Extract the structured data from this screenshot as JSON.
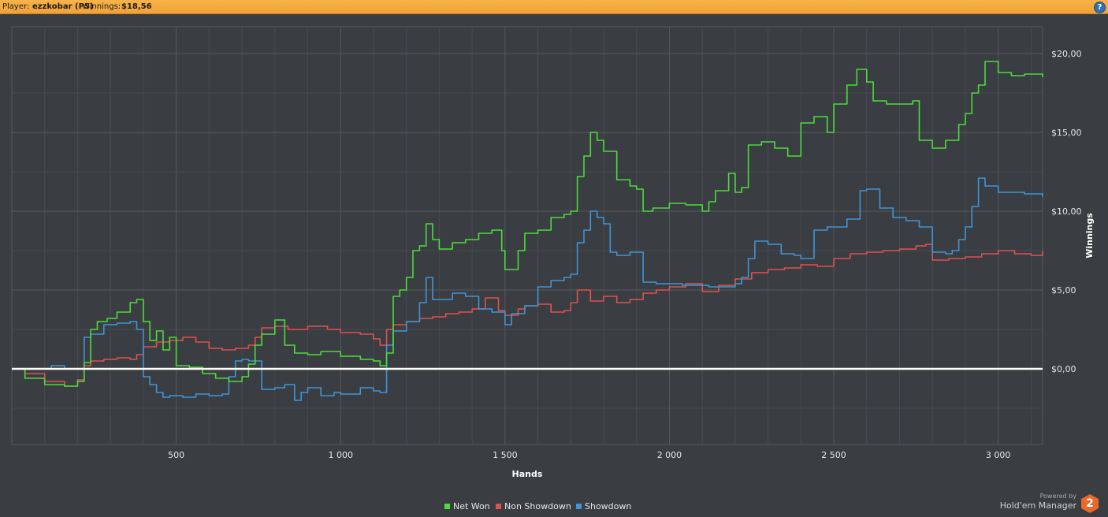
{
  "header": {
    "player_label": "Player:",
    "player_name": "ezzkobar (PS)",
    "winnings_label": "Winnings:",
    "winnings_value": "$18,56",
    "help_label": "?"
  },
  "brand": {
    "powered": "Powered by",
    "name": "Hold'em Manager",
    "logo": "2"
  },
  "colors": {
    "net_won": "#4cdc3c",
    "non_showdown": "#e0524f",
    "showdown": "#3f95d8",
    "zero_line": "#ffffff",
    "grid": "#55595e"
  },
  "chart_data": {
    "type": "line",
    "title": "",
    "xlabel": "Hands",
    "ylabel": "Winnings",
    "xlim": [
      0,
      3135
    ],
    "ylim": [
      -4.8,
      21.7
    ],
    "x_ticks": [
      500,
      1000,
      1500,
      2000,
      2500,
      3000
    ],
    "x_tick_labels": [
      "500",
      "1 000",
      "1 500",
      "2 000",
      "2 500",
      "3 000"
    ],
    "y_ticks": [
      0,
      5,
      10,
      15,
      20
    ],
    "y_tick_labels": [
      "$0,00",
      "$5,00",
      "$10,00",
      "$15,00",
      "$20,00"
    ],
    "grid": true,
    "legend_position": "bottom-center",
    "series": [
      {
        "name": "Net Won",
        "color": "#4cdc3c",
        "x": [
          0,
          40,
          100,
          160,
          200,
          220,
          240,
          260,
          290,
          320,
          360,
          380,
          400,
          420,
          440,
          460,
          480,
          500,
          540,
          580,
          620,
          660,
          700,
          720,
          740,
          760,
          800,
          830,
          860,
          900,
          940,
          1000,
          1060,
          1100,
          1120,
          1140,
          1160,
          1180,
          1200,
          1220,
          1240,
          1260,
          1280,
          1300,
          1340,
          1380,
          1420,
          1460,
          1490,
          1500,
          1540,
          1560,
          1600,
          1640,
          1680,
          1700,
          1720,
          1740,
          1760,
          1780,
          1800,
          1840,
          1880,
          1900,
          1920,
          1950,
          2000,
          2050,
          2100,
          2120,
          2140,
          2180,
          2200,
          2220,
          2240,
          2280,
          2320,
          2360,
          2400,
          2440,
          2480,
          2500,
          2540,
          2570,
          2600,
          2620,
          2660,
          2700,
          2740,
          2760,
          2800,
          2840,
          2880,
          2900,
          2920,
          2940,
          2960,
          3000,
          3040,
          3080,
          3135
        ],
        "y": [
          0,
          -0.6,
          -1.0,
          -1.1,
          -0.8,
          0.4,
          2.5,
          3.0,
          3.2,
          3.6,
          4.2,
          4.4,
          3.0,
          1.8,
          2.4,
          1.2,
          2.0,
          0.2,
          0.1,
          -0.3,
          -0.6,
          -0.8,
          -0.5,
          0.3,
          1.5,
          2.2,
          3.1,
          1.5,
          1.0,
          0.9,
          1.1,
          0.8,
          0.6,
          0.5,
          0.2,
          1.0,
          4.6,
          5.0,
          5.8,
          7.5,
          7.8,
          9.2,
          8.2,
          7.6,
          8.0,
          8.2,
          8.6,
          8.8,
          7.5,
          6.3,
          7.5,
          8.6,
          8.8,
          9.6,
          9.8,
          10.0,
          12.2,
          13.5,
          15.0,
          14.5,
          13.8,
          12.0,
          11.6,
          11.4,
          10.0,
          10.2,
          10.5,
          10.4,
          10.0,
          10.6,
          11.3,
          12.4,
          11.2,
          11.5,
          14.2,
          14.4,
          14.0,
          13.5,
          15.6,
          16.0,
          15.0,
          16.8,
          18.0,
          19.0,
          18.2,
          17.0,
          16.8,
          16.8,
          17.0,
          14.5,
          14.0,
          14.5,
          15.5,
          16.2,
          17.5,
          18.0,
          19.5,
          18.8,
          18.6,
          18.7,
          18.5
        ]
      },
      {
        "name": "Non Showdown",
        "color": "#e0524f",
        "x": [
          0,
          40,
          100,
          160,
          200,
          220,
          240,
          280,
          320,
          360,
          380,
          400,
          440,
          480,
          520,
          560,
          600,
          640,
          680,
          720,
          740,
          760,
          800,
          840,
          900,
          960,
          1000,
          1060,
          1100,
          1120,
          1140,
          1160,
          1200,
          1240,
          1280,
          1320,
          1360,
          1400,
          1440,
          1480,
          1500,
          1540,
          1560,
          1600,
          1640,
          1680,
          1700,
          1720,
          1760,
          1800,
          1840,
          1880,
          1920,
          1960,
          2000,
          2050,
          2100,
          2150,
          2200,
          2250,
          2300,
          2350,
          2400,
          2450,
          2500,
          2550,
          2600,
          2650,
          2700,
          2750,
          2780,
          2800,
          2850,
          2900,
          2950,
          3000,
          3050,
          3100,
          3135
        ],
        "y": [
          0,
          -0.3,
          -0.8,
          -1.1,
          -0.7,
          0.2,
          0.5,
          0.6,
          0.7,
          0.6,
          0.9,
          1.4,
          1.7,
          1.8,
          2.0,
          1.7,
          1.3,
          1.2,
          1.3,
          1.5,
          2.0,
          2.6,
          2.7,
          2.5,
          2.7,
          2.5,
          2.3,
          2.2,
          1.9,
          1.5,
          2.5,
          2.8,
          3.0,
          3.2,
          3.3,
          3.5,
          3.6,
          3.8,
          4.5,
          3.7,
          3.4,
          3.8,
          4.0,
          4.1,
          3.6,
          3.7,
          4.2,
          5.0,
          4.3,
          4.6,
          4.2,
          4.4,
          4.8,
          5.0,
          5.2,
          5.4,
          4.9,
          5.3,
          5.7,
          6.1,
          6.3,
          6.4,
          6.6,
          6.5,
          7.0,
          7.3,
          7.4,
          7.5,
          7.6,
          7.8,
          7.9,
          6.9,
          7.0,
          7.1,
          7.3,
          7.5,
          7.3,
          7.2,
          7.5
        ]
      },
      {
        "name": "Showdown",
        "color": "#3f95d8",
        "x": [
          0,
          100,
          120,
          160,
          200,
          220,
          240,
          280,
          320,
          360,
          380,
          400,
          420,
          440,
          460,
          480,
          520,
          560,
          600,
          640,
          660,
          680,
          700,
          720,
          760,
          800,
          830,
          860,
          880,
          900,
          940,
          980,
          1000,
          1060,
          1100,
          1120,
          1140,
          1160,
          1200,
          1240,
          1260,
          1280,
          1300,
          1340,
          1380,
          1420,
          1460,
          1500,
          1520,
          1560,
          1600,
          1640,
          1680,
          1700,
          1720,
          1740,
          1760,
          1780,
          1800,
          1820,
          1840,
          1880,
          1920,
          1960,
          2000,
          2040,
          2080,
          2120,
          2160,
          2200,
          2220,
          2240,
          2260,
          2300,
          2340,
          2380,
          2400,
          2440,
          2480,
          2500,
          2540,
          2580,
          2600,
          2640,
          2680,
          2720,
          2760,
          2800,
          2840,
          2860,
          2880,
          2900,
          2920,
          2940,
          2960,
          3000,
          3040,
          3080,
          3135
        ],
        "y": [
          0,
          0,
          0.2,
          0,
          0,
          2.0,
          2.2,
          2.8,
          2.9,
          3.0,
          2.5,
          -0.5,
          -1.0,
          -1.5,
          -1.8,
          -1.7,
          -1.8,
          -1.6,
          -1.7,
          -1.6,
          -0.5,
          0.5,
          0.6,
          0.5,
          -1.3,
          -1.2,
          -1.0,
          -2.0,
          -1.5,
          -1.2,
          -1.7,
          -1.5,
          -1.6,
          -1.2,
          -1.4,
          -1.5,
          1.5,
          2.4,
          3.0,
          4.2,
          5.8,
          4.4,
          4.4,
          4.8,
          4.6,
          3.8,
          3.6,
          2.8,
          3.5,
          4.0,
          5.2,
          5.6,
          5.8,
          6.0,
          8.0,
          8.8,
          10.0,
          9.6,
          9.2,
          7.4,
          7.2,
          7.4,
          5.5,
          5.4,
          5.4,
          5.3,
          5.3,
          5.2,
          5.2,
          5.4,
          5.8,
          7.0,
          8.1,
          7.9,
          7.3,
          7.2,
          7.0,
          8.8,
          9.0,
          9.0,
          9.5,
          11.3,
          11.4,
          10.2,
          9.6,
          9.4,
          9.0,
          7.4,
          7.3,
          7.5,
          8.2,
          9.0,
          10.3,
          12.1,
          11.6,
          11.2,
          11.2,
          11.1,
          10.9
        ]
      }
    ]
  }
}
